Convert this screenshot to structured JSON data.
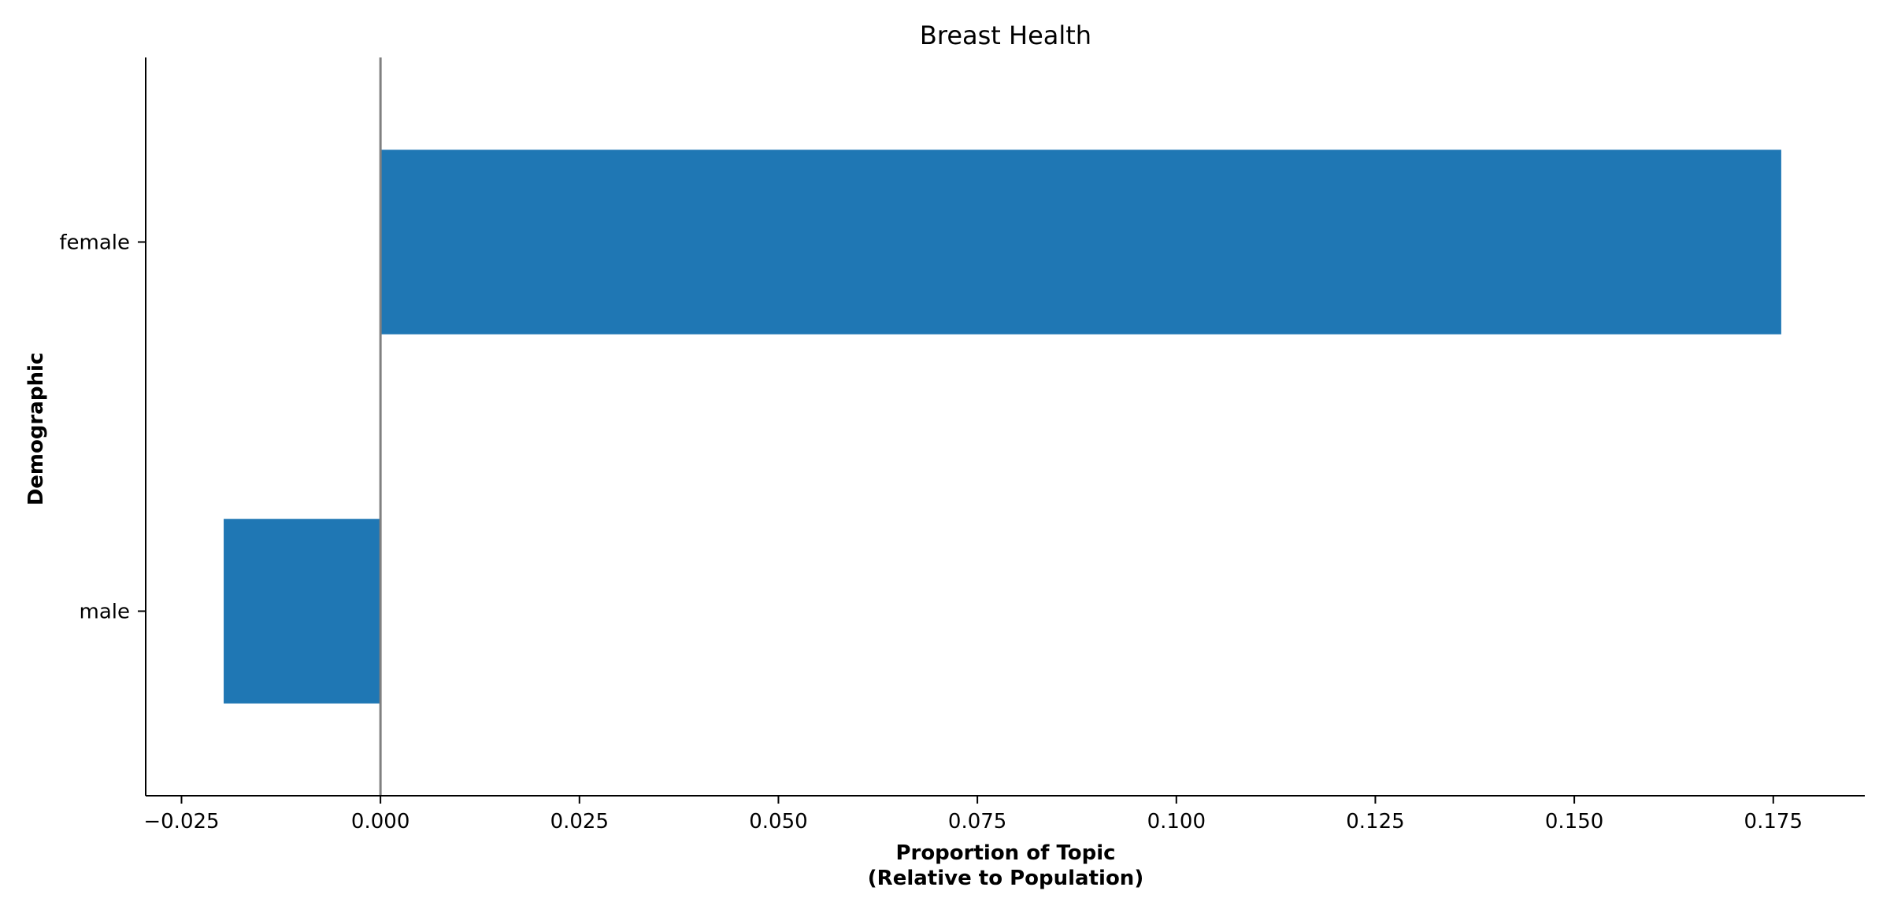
{
  "chart_data": {
    "type": "bar",
    "orientation": "horizontal",
    "title": "Breast Health",
    "xlabel_line1": "Proportion of Topic",
    "xlabel_line2": "(Relative to Population)",
    "ylabel": "Demographic",
    "categories": [
      "female",
      "male"
    ],
    "values": [
      0.176,
      -0.0197
    ],
    "xlim": [
      -0.0295,
      0.1865
    ],
    "xticks": [
      -0.025,
      0.0,
      0.025,
      0.05,
      0.075,
      0.1,
      0.125,
      0.15,
      0.175
    ],
    "xtick_labels": [
      "−0.025",
      "0.000",
      "0.025",
      "0.050",
      "0.075",
      "0.100",
      "0.125",
      "0.150",
      "0.175"
    ],
    "zero_line": true,
    "grid": false,
    "legend": "none",
    "colors": {
      "bar": "#1f77b4",
      "zero_line": "#808080",
      "axis": "#000000"
    }
  }
}
